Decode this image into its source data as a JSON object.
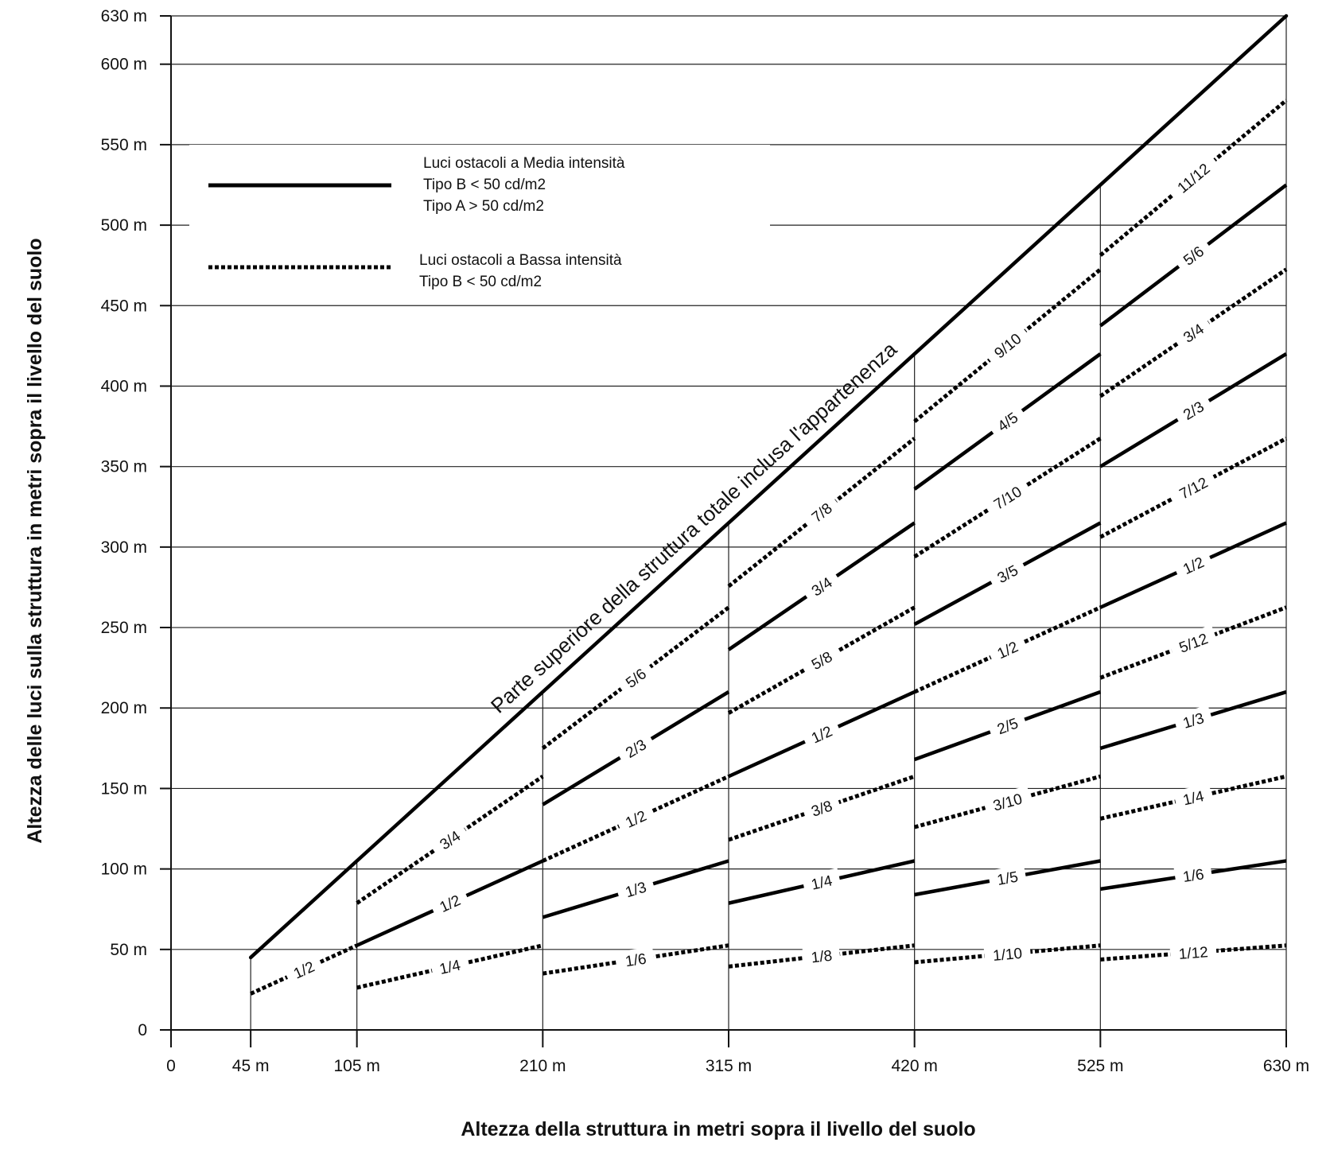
{
  "chart_data": {
    "type": "line",
    "xlabel": "Altezza della struttura in metri sopra il livello del suolo",
    "ylabel": "Altezza delle luci sulla struttura in metri sopra il livello del suolo",
    "xlim": [
      0,
      630
    ],
    "ylim": [
      0,
      630
    ],
    "x_ticks": [
      {
        "v": 0,
        "label": "0"
      },
      {
        "v": 45,
        "label": "45 m"
      },
      {
        "v": 105,
        "label": "105 m"
      },
      {
        "v": 210,
        "label": "210 m"
      },
      {
        "v": 315,
        "label": "315 m"
      },
      {
        "v": 420,
        "label": "420 m"
      },
      {
        "v": 525,
        "label": "525 m"
      },
      {
        "v": 630,
        "label": "630 m"
      }
    ],
    "y_ticks": [
      {
        "v": 0,
        "label": "0"
      },
      {
        "v": 50,
        "label": "50 m"
      },
      {
        "v": 100,
        "label": "100 m"
      },
      {
        "v": 150,
        "label": "150 m"
      },
      {
        "v": 200,
        "label": "200 m"
      },
      {
        "v": 250,
        "label": "250 m"
      },
      {
        "v": 300,
        "label": "300 m"
      },
      {
        "v": 350,
        "label": "350 m"
      },
      {
        "v": 400,
        "label": "400 m"
      },
      {
        "v": 450,
        "label": "450 m"
      },
      {
        "v": 500,
        "label": "500 m"
      },
      {
        "v": 550,
        "label": "550 m"
      },
      {
        "v": 600,
        "label": "600 m"
      },
      {
        "v": 630,
        "label": "630 m"
      }
    ],
    "top_line": {
      "x": [
        45,
        630
      ],
      "y": [
        45,
        630
      ],
      "label": "Parte superiore della struttura totale inclusa l'appartenenza"
    },
    "legend": [
      {
        "style": "solid",
        "lines": [
          "Luci ostacoli a Media intensità",
          "Tipo B   < 50 cd/m2",
          "Tipo A  > 50 cd/m2"
        ]
      },
      {
        "style": "dashed",
        "lines": [
          "Luci ostacoli a Bassa intensità",
          "Tipo B   < 50 cd/m2"
        ]
      }
    ],
    "segments": [
      {
        "x": [
          45,
          105
        ],
        "fraction": 0.5,
        "style": "dashed",
        "label": "1/2"
      },
      {
        "x": [
          105,
          210
        ],
        "fraction": 0.25,
        "style": "dashed",
        "label": "1/4"
      },
      {
        "x": [
          105,
          210
        ],
        "fraction": 0.5,
        "style": "solid",
        "label": "1/2"
      },
      {
        "x": [
          105,
          210
        ],
        "fraction": 0.75,
        "style": "dashed",
        "label": "3/4"
      },
      {
        "x": [
          210,
          315
        ],
        "fraction": 0.1667,
        "style": "dashed",
        "label": "1/6"
      },
      {
        "x": [
          210,
          315
        ],
        "fraction": 0.3333,
        "style": "solid",
        "label": "1/3"
      },
      {
        "x": [
          210,
          315
        ],
        "fraction": 0.5,
        "style": "dashed",
        "label": "1/2"
      },
      {
        "x": [
          210,
          315
        ],
        "fraction": 0.6667,
        "style": "solid",
        "label": "2/3"
      },
      {
        "x": [
          210,
          315
        ],
        "fraction": 0.8333,
        "style": "dashed",
        "label": "5/6"
      },
      {
        "x": [
          315,
          420
        ],
        "fraction": 0.125,
        "style": "dashed",
        "label": "1/8"
      },
      {
        "x": [
          315,
          420
        ],
        "fraction": 0.25,
        "style": "solid",
        "label": "1/4"
      },
      {
        "x": [
          315,
          420
        ],
        "fraction": 0.375,
        "style": "dashed",
        "label": "3/8"
      },
      {
        "x": [
          315,
          420
        ],
        "fraction": 0.5,
        "style": "solid",
        "label": "1/2"
      },
      {
        "x": [
          315,
          420
        ],
        "fraction": 0.625,
        "style": "dashed",
        "label": "5/8"
      },
      {
        "x": [
          315,
          420
        ],
        "fraction": 0.75,
        "style": "solid",
        "label": "3/4"
      },
      {
        "x": [
          315,
          420
        ],
        "fraction": 0.875,
        "style": "dashed",
        "label": "7/8"
      },
      {
        "x": [
          420,
          525
        ],
        "fraction": 0.1,
        "style": "dashed",
        "label": "1/10"
      },
      {
        "x": [
          420,
          525
        ],
        "fraction": 0.2,
        "style": "solid",
        "label": "1/5"
      },
      {
        "x": [
          420,
          525
        ],
        "fraction": 0.3,
        "style": "dashed",
        "label": "3/10"
      },
      {
        "x": [
          420,
          525
        ],
        "fraction": 0.4,
        "style": "solid",
        "label": "2/5"
      },
      {
        "x": [
          420,
          525
        ],
        "fraction": 0.5,
        "style": "dashed",
        "label": "1/2"
      },
      {
        "x": [
          420,
          525
        ],
        "fraction": 0.6,
        "style": "solid",
        "label": "3/5"
      },
      {
        "x": [
          420,
          525
        ],
        "fraction": 0.7,
        "style": "dashed",
        "label": "7/10"
      },
      {
        "x": [
          420,
          525
        ],
        "fraction": 0.8,
        "style": "solid",
        "label": "4/5"
      },
      {
        "x": [
          420,
          525
        ],
        "fraction": 0.9,
        "style": "dashed",
        "label": "9/10"
      },
      {
        "x": [
          525,
          630
        ],
        "fraction": 0.0833,
        "style": "dashed",
        "label": "1/12"
      },
      {
        "x": [
          525,
          630
        ],
        "fraction": 0.1667,
        "style": "solid",
        "label": "1/6"
      },
      {
        "x": [
          525,
          630
        ],
        "fraction": 0.25,
        "style": "dashed",
        "label": "1/4"
      },
      {
        "x": [
          525,
          630
        ],
        "fraction": 0.3333,
        "style": "solid",
        "label": "1/3"
      },
      {
        "x": [
          525,
          630
        ],
        "fraction": 0.4167,
        "style": "dashed",
        "label": "5/12"
      },
      {
        "x": [
          525,
          630
        ],
        "fraction": 0.5,
        "style": "solid",
        "label": "1/2"
      },
      {
        "x": [
          525,
          630
        ],
        "fraction": 0.5833,
        "style": "dashed",
        "label": "7/12"
      },
      {
        "x": [
          525,
          630
        ],
        "fraction": 0.6667,
        "style": "solid",
        "label": "2/3"
      },
      {
        "x": [
          525,
          630
        ],
        "fraction": 0.75,
        "style": "dashed",
        "label": "3/4"
      },
      {
        "x": [
          525,
          630
        ],
        "fraction": 0.8333,
        "style": "solid",
        "label": "5/6"
      },
      {
        "x": [
          525,
          630
        ],
        "fraction": 0.9167,
        "style": "dashed",
        "label": "11/12"
      }
    ],
    "grid": true
  }
}
